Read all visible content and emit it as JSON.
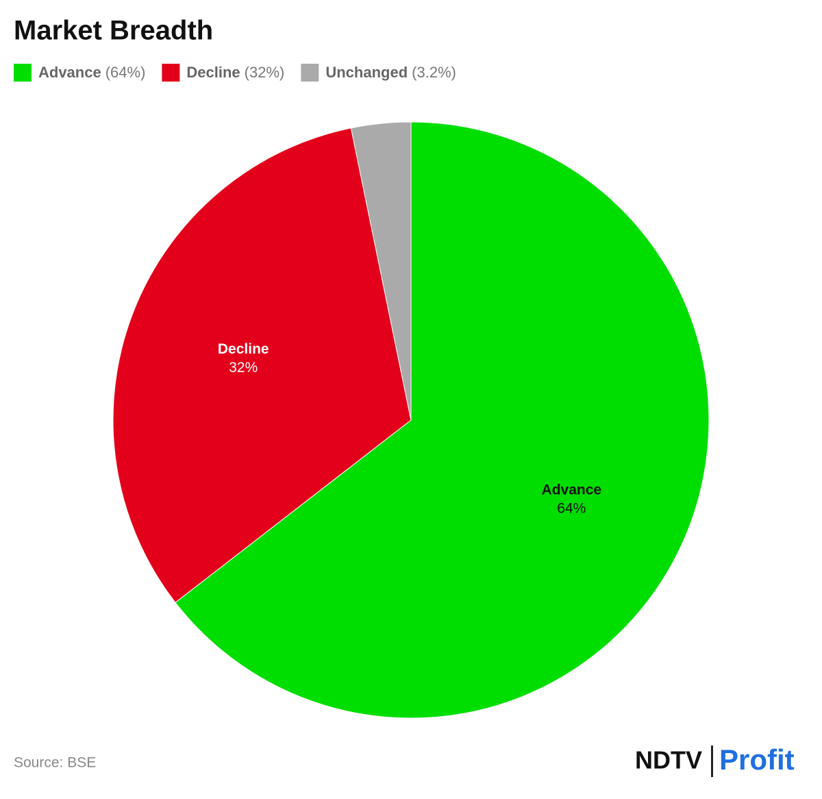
{
  "chart_data": {
    "type": "pie",
    "title": "Market Breadth",
    "categories": [
      "Advance",
      "Decline",
      "Unchanged"
    ],
    "values": [
      64,
      32,
      3.2
    ],
    "value_labels": [
      "64%",
      "32%",
      null
    ],
    "legend_labels": [
      "(64%)",
      "(32%)",
      "(3.2%)"
    ],
    "colors": [
      "#00dd00",
      "#e2001a",
      "#aaaaaa"
    ],
    "label_colors": [
      "#111111",
      "#ffffff",
      null
    ],
    "source": "Source: BSE",
    "brand": [
      "NDTV",
      "Profit"
    ]
  }
}
